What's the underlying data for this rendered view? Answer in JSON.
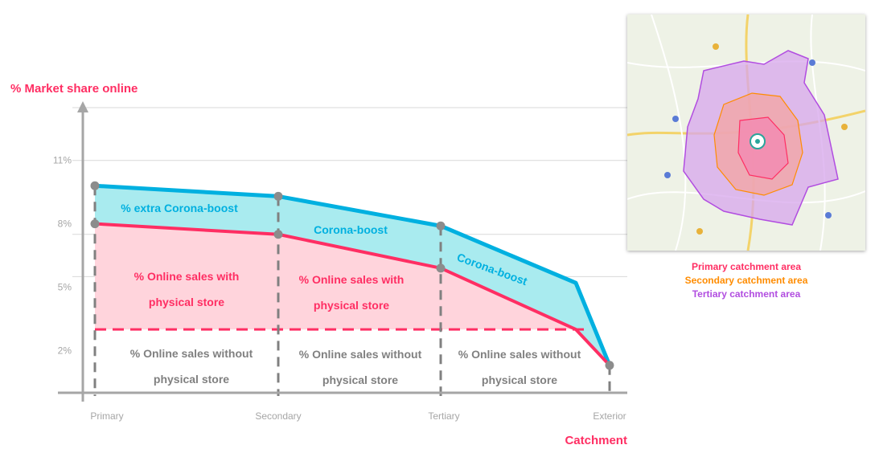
{
  "chart_data": {
    "type": "area",
    "ylabel": "% Market share online",
    "xlabel": "Catchment area",
    "x_ticks": [
      "Primary",
      "Secondary",
      "Tertiary",
      "Exterior"
    ],
    "y_ticks": [
      "2%",
      "5%",
      "8%",
      "11%"
    ],
    "y_tick_values": [
      2,
      5,
      8,
      11
    ],
    "ylim": [
      0,
      13.5
    ],
    "grid": true,
    "series": [
      {
        "name": "% extra Corona-boost",
        "color": "#00b0e0",
        "points": [
          [
            0,
            9.8
          ],
          [
            1,
            9.3
          ],
          [
            2,
            7.9
          ],
          [
            2.8,
            5.2
          ],
          [
            3,
            1.3
          ]
        ]
      },
      {
        "name": "Corona-boost",
        "color": "#00b0e0",
        "points": []
      },
      {
        "name": "% Online sales with physical store",
        "color": "#ff2e63",
        "points": [
          [
            0,
            8.0
          ],
          [
            1,
            7.5
          ],
          [
            2,
            5.9
          ],
          [
            2.8,
            3.0
          ],
          [
            3,
            1.3
          ]
        ]
      },
      {
        "name": "% Online sales without physical store",
        "color": "#ff2e63",
        "points": [
          [
            0,
            3.0
          ],
          [
            3,
            3.0
          ]
        ]
      }
    ],
    "marker_points": [
      [
        0,
        9.8
      ],
      [
        0,
        8.0
      ],
      [
        1,
        9.3
      ],
      [
        1,
        7.5
      ],
      [
        2,
        7.9
      ],
      [
        2,
        5.9
      ],
      [
        3,
        1.3
      ]
    ],
    "area_labels": [
      {
        "text": "% extra Corona-boost",
        "color": "#00b0e0"
      },
      {
        "text": "Corona-boost",
        "color": "#00b0e0"
      },
      {
        "text": "Corona-boost",
        "color": "#00b0e0"
      },
      {
        "text": "% Online sales with physical store",
        "color": "#ff2e63"
      },
      {
        "text": "% Online sales with physical store",
        "color": "#ff2e63"
      },
      {
        "text": "% Online sales without physical store",
        "color": "#808080"
      },
      {
        "text": "% Online sales without physical store",
        "color": "#808080"
      },
      {
        "text": "% Online sales without physical store",
        "color": "#808080"
      }
    ],
    "colors": {
      "boost_fill": "#a9ebef",
      "online_fill": "#ffd4dc",
      "accent_red": "#ff2e63",
      "accent_blue": "#00b0e0",
      "axis": "#a6a6a6"
    }
  },
  "map_legend": {
    "primary": {
      "label": "Primary catchment area",
      "color": "#ff2e63"
    },
    "secondary": {
      "label": "Secondary catchment area",
      "color": "#ff8c00"
    },
    "tertiary": {
      "label": "Tertiary catchment area",
      "color": "#b14de0"
    }
  }
}
